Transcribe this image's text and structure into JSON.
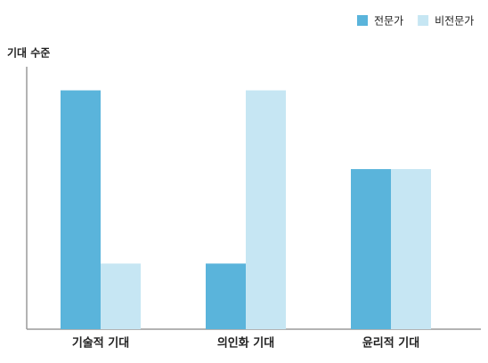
{
  "chart_data": {
    "type": "bar",
    "y_label": "기대 수준",
    "categories": [
      "기술적 기대",
      "의인화 기대",
      "윤리적 기대"
    ],
    "series": [
      {
        "name": "전문가",
        "color": "#5ab4db",
        "values": [
          91,
          25,
          61
        ]
      },
      {
        "name": "비전문가",
        "color": "#c6e6f3",
        "values": [
          25,
          91,
          61
        ]
      }
    ],
    "ylim": [
      0,
      100
    ],
    "legend": "top-right"
  }
}
